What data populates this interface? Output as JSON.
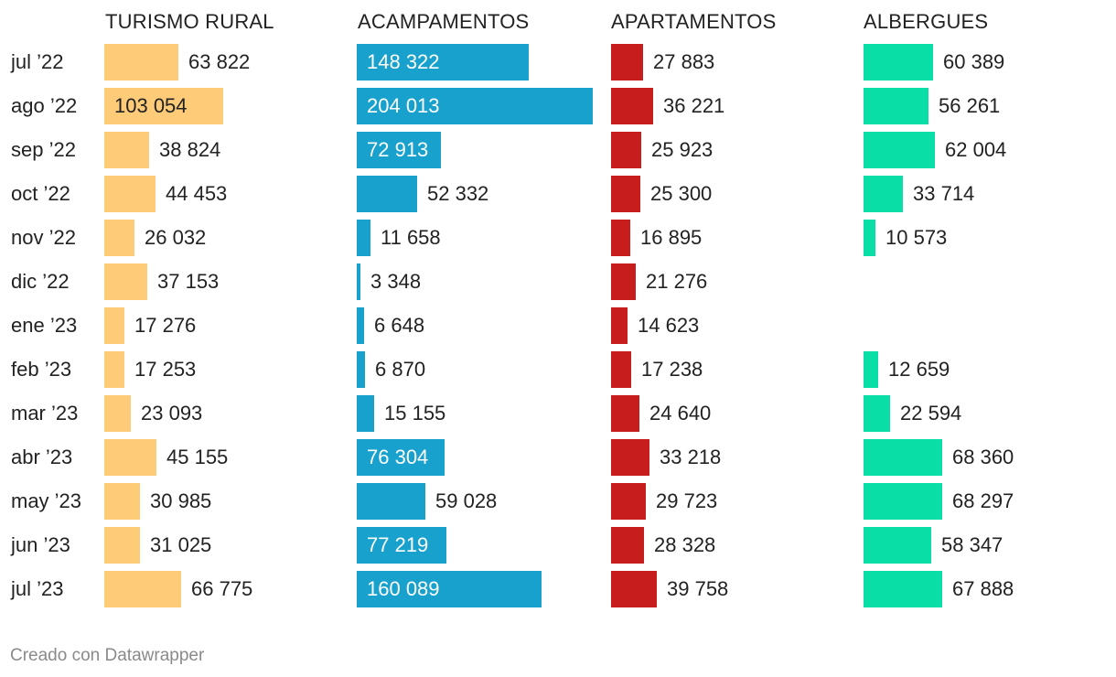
{
  "chart_data": {
    "type": "bar",
    "categories": [
      "jul ’22",
      "ago ’22",
      "sep ’22",
      "oct ’22",
      "nov ’22",
      "dic ’22",
      "ene ’23",
      "feb ’23",
      "mar ’23",
      "abr ’23",
      "may ’23",
      "jun ’23",
      "jul ’23"
    ],
    "series": [
      {
        "name": "TURISMO RURAL",
        "color": "#fecb78",
        "values": [
          63822,
          103054,
          38824,
          44453,
          26032,
          37153,
          17276,
          17253,
          23093,
          45155,
          30985,
          31025,
          66775
        ],
        "labels": [
          "63 822",
          "103 054",
          "38 824",
          "44 453",
          "26 032",
          "37 153",
          "17 276",
          "17 253",
          "23 093",
          "45 155",
          "30 985",
          "31 025",
          "66 775"
        ]
      },
      {
        "name": "ACAMPAMENTOS",
        "color": "#18a1cd",
        "values": [
          148322,
          204013,
          72913,
          52332,
          11658,
          3348,
          6648,
          6870,
          15155,
          76304,
          59028,
          77219,
          160089
        ],
        "labels": [
          "148 322",
          "204 013",
          "72 913",
          "52 332",
          "11 658",
          "3 348",
          "6 648",
          "6 870",
          "15 155",
          "76 304",
          "59 028",
          "77 219",
          "160 089"
        ]
      },
      {
        "name": "APARTAMENTOS",
        "color": "#c71e1d",
        "values": [
          27883,
          36221,
          25923,
          25300,
          16895,
          21276,
          14623,
          17238,
          24640,
          33218,
          29723,
          28328,
          39758
        ],
        "labels": [
          "27 883",
          "36 221",
          "25 923",
          "25 300",
          "16 895",
          "21 276",
          "14 623",
          "17 238",
          "24 640",
          "33 218",
          "29 723",
          "28 328",
          "39 758"
        ]
      },
      {
        "name": "ALBERGUES",
        "color": "#09dea6",
        "values": [
          60389,
          56261,
          62004,
          33714,
          10573,
          null,
          null,
          12659,
          22594,
          68360,
          68297,
          58347,
          67888
        ],
        "labels": [
          "60 389",
          "56 261",
          "62 004",
          "33 714",
          "10 573",
          "",
          "",
          "12 659",
          "22 594",
          "68 360",
          "68 297",
          "58 347",
          "67 888"
        ]
      }
    ]
  },
  "footer": "Creado con Datawrapper"
}
